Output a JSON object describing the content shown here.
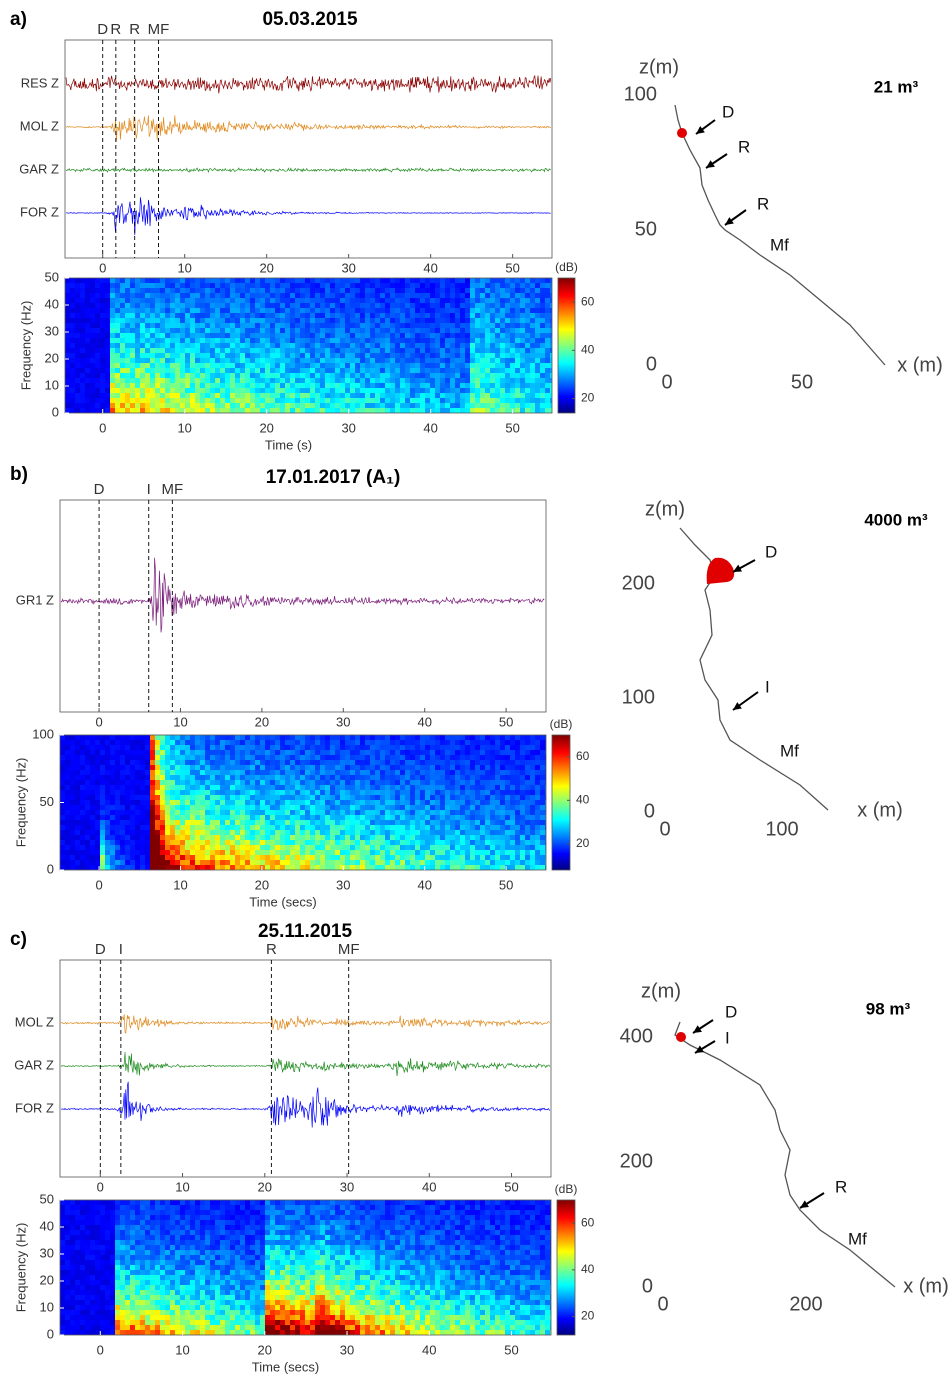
{
  "panels": [
    {
      "label": "a)",
      "title": "05.03.2015",
      "seismogram": {
        "traces": [
          {
            "name": "RES Z",
            "color": "#8b0000"
          },
          {
            "name": "MOL Z",
            "color": "#e08a1e"
          },
          {
            "name": "GAR Z",
            "color": "#1e8b1e"
          },
          {
            "name": "FOR Z",
            "color": "#0000ff"
          }
        ],
        "markers": [
          {
            "label": "D",
            "time": 0
          },
          {
            "label": "R",
            "time": 1.6
          },
          {
            "label": "R",
            "time": 3.9
          },
          {
            "label": "MF",
            "time": 6.8
          }
        ],
        "xlim": [
          -4.6,
          54.8
        ],
        "xticks": [
          0,
          10,
          20,
          30,
          40,
          50
        ]
      },
      "spectrogram": {
        "ylabel": "Frequency (Hz)",
        "xlabel": "Time (s)",
        "xlim": [
          -4.6,
          54.8
        ],
        "xticks": [
          0,
          10,
          20,
          30,
          40,
          50
        ],
        "ylim": [
          0,
          50
        ],
        "yticks": [
          0,
          10,
          20,
          30,
          40,
          50
        ],
        "colorbar": {
          "label": "(dB)",
          "lim": [
            14,
            70
          ],
          "ticks": [
            20,
            40,
            60
          ]
        }
      },
      "profile": {
        "zlabel": "z(m)",
        "xlabel": "x (m)",
        "zticks": [
          0,
          50,
          100
        ],
        "xticks": [
          0,
          50
        ],
        "volume": "21 m³",
        "annotations": [
          "D",
          "R",
          "R",
          "Mf"
        ]
      }
    },
    {
      "label": "b)",
      "title": "17.01.2017 (A₁)",
      "seismogram": {
        "traces": [
          {
            "name": "GR1 Z",
            "color": "#7b1f7b"
          }
        ],
        "markers": [
          {
            "label": "D",
            "time": 0
          },
          {
            "label": "I",
            "time": 6.1
          },
          {
            "label": "MF",
            "time": 9
          }
        ],
        "xlim": [
          -4.8,
          54.9
        ],
        "xticks": [
          0,
          10,
          20,
          30,
          40,
          50
        ]
      },
      "spectrogram": {
        "ylabel": "Frequency (Hz)",
        "xlabel": "Time (secs)",
        "xlim": [
          -4.8,
          54.9
        ],
        "xticks": [
          0,
          10,
          20,
          30,
          40,
          50
        ],
        "ylim": [
          0,
          100
        ],
        "yticks": [
          0,
          50,
          100
        ],
        "colorbar": {
          "label": "(dB)",
          "lim": [
            8,
            70
          ],
          "ticks": [
            20,
            40,
            60
          ]
        }
      },
      "profile": {
        "zlabel": "z(m)",
        "xlabel": "x (m)",
        "zticks": [
          0,
          100,
          200
        ],
        "xticks": [
          0,
          100
        ],
        "volume": "4000 m³",
        "annotations": [
          "D",
          "I",
          "Mf"
        ]
      }
    },
    {
      "label": "c)",
      "title": "25.11.2015",
      "seismogram": {
        "traces": [
          {
            "name": "MOL Z",
            "color": "#e08a1e"
          },
          {
            "name": "GAR Z",
            "color": "#1e8b1e"
          },
          {
            "name": "FOR Z",
            "color": "#0000ff"
          }
        ],
        "markers": [
          {
            "label": "D",
            "time": 0
          },
          {
            "label": "I",
            "time": 2.5
          },
          {
            "label": "R",
            "time": 20.8
          },
          {
            "label": "MF",
            "time": 30.2
          }
        ],
        "xlim": [
          -4.9,
          54.8
        ],
        "xticks": [
          0,
          10,
          20,
          30,
          40,
          50
        ]
      },
      "spectrogram": {
        "ylabel": "Frequency (Hz)",
        "xlabel": "Time (secs)",
        "xlim": [
          -4.9,
          54.8
        ],
        "xticks": [
          0,
          10,
          20,
          30,
          40,
          50
        ],
        "ylim": [
          0,
          50
        ],
        "yticks": [
          0,
          10,
          20,
          30,
          40,
          50
        ],
        "colorbar": {
          "label": "(dB)",
          "lim": [
            12,
            70
          ],
          "ticks": [
            20,
            40,
            60
          ]
        }
      },
      "profile": {
        "zlabel": "z(m)",
        "xlabel": "x (m)",
        "zticks": [
          0,
          200,
          400
        ],
        "xticks": [
          0,
          200
        ],
        "volume": "98 m³",
        "annotations": [
          "D",
          "I",
          "R",
          "Mf"
        ]
      }
    }
  ]
}
